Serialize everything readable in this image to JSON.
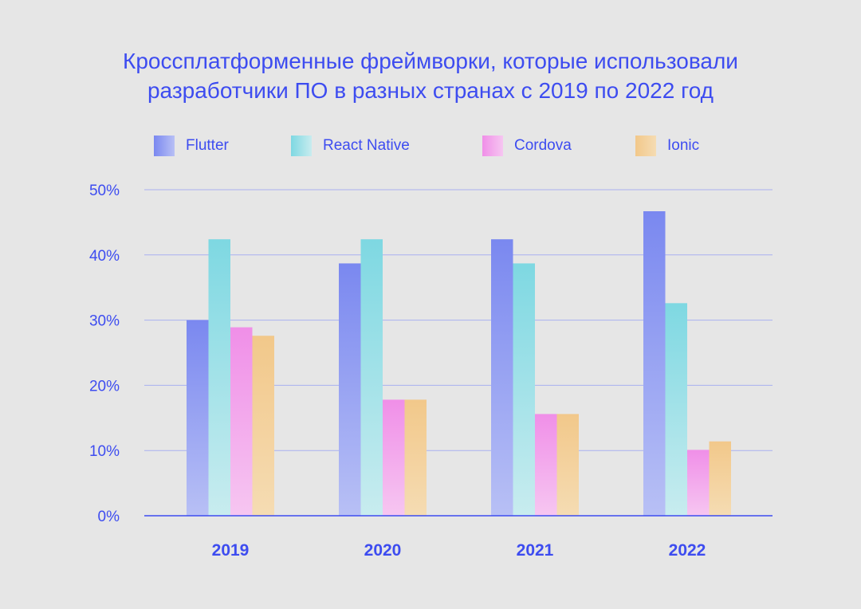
{
  "title_lines": [
    "Кроссплатформенные фреймворки, которые использовали",
    "разработчики ПО в разных странах с 2019 по 2022 год"
  ],
  "colors": {
    "background": "#e6e6e6",
    "text": "#3d4cf0",
    "grid": "#a9b0f0",
    "axis": "#3d4cf0"
  },
  "chart_data": {
    "type": "bar",
    "categories": [
      "2019",
      "2020",
      "2021",
      "2022"
    ],
    "series": [
      {
        "name": "Flutter",
        "values": [
          30,
          38.7,
          42.4,
          46.7
        ],
        "color_start": "#7a88f0",
        "color_end": "#b8c0f5"
      },
      {
        "name": "React Native",
        "values": [
          42.4,
          42.4,
          38.7,
          32.6
        ],
        "color_start": "#7ed8e2",
        "color_end": "#c8ecef"
      },
      {
        "name": "Cordova",
        "values": [
          28.9,
          17.8,
          15.6,
          10.1
        ],
        "color_start": "#f08fe8",
        "color_end": "#f6c6f1"
      },
      {
        "name": "Ionic",
        "values": [
          27.6,
          17.8,
          15.6,
          11.4
        ],
        "color_start": "#f2c88a",
        "color_end": "#f5dcb3"
      }
    ],
    "yticks": [
      0,
      10,
      20,
      30,
      40,
      50
    ],
    "ytick_labels": [
      "0%",
      "10%",
      "20%",
      "30%",
      "40%",
      "50%"
    ],
    "ylim": [
      0,
      50
    ],
    "grid": true,
    "legend_position": "top-center"
  }
}
